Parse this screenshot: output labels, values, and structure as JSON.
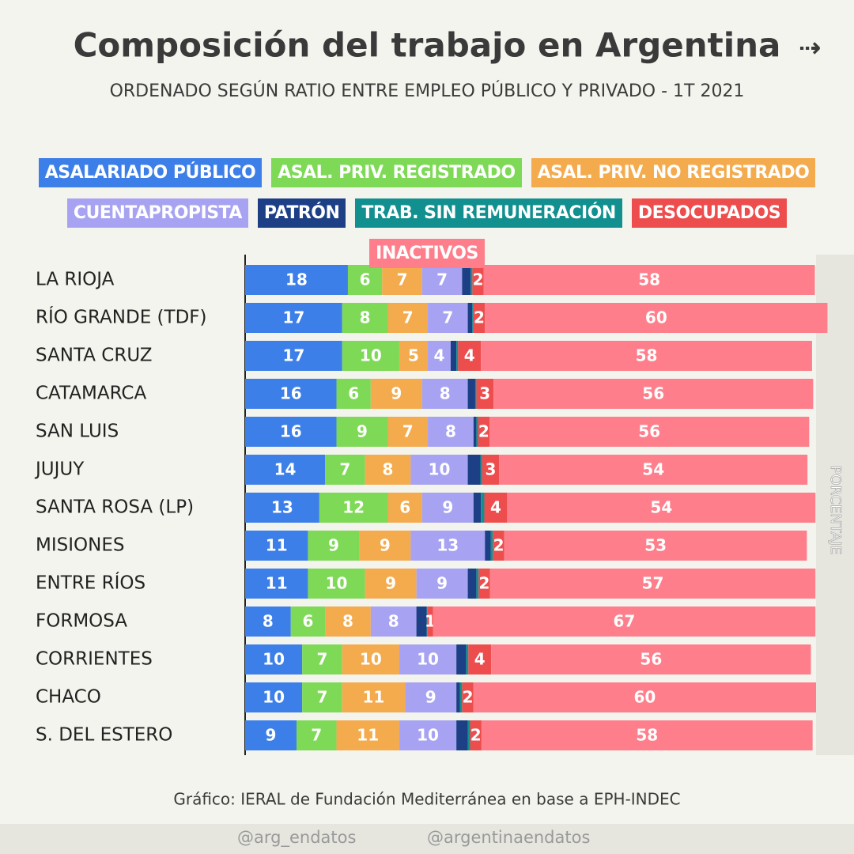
{
  "chart_data": {
    "type": "stacked-bar-horizontal",
    "title": "Composición del trabajo en Argentina",
    "subtitle": "ORDENADO SEGÚN RATIO ENTRE EMPLEO PÚBLICO Y PRIVADO  -  1T 2021",
    "x_label": "PORCENTAJE",
    "source": "Gráfico: IERAL de Fundación Mediterránea en base a EPH-INDEC",
    "credits": [
      "@arg_endatos",
      "@argentinaendatos"
    ],
    "categories": [
      "LA RIOJA",
      "RÍO GRANDE (TDF)",
      "SANTA CRUZ",
      "CATAMARCA",
      "SAN LUIS",
      "JUJUY",
      "SANTA ROSA (LP)",
      "MISIONES",
      "ENTRE RÍOS",
      "FORMOSA",
      "CORRIENTES",
      "CHACO",
      "S. DEL ESTERO"
    ],
    "xlim": [
      0,
      100
    ],
    "series": [
      {
        "name": "ASALARIADO PÚBLICO",
        "color": "#3d7fe8",
        "data_labels": true,
        "values": [
          18,
          17,
          17,
          16,
          16,
          14,
          13,
          11,
          11,
          8,
          10,
          10,
          9
        ]
      },
      {
        "name": "ASAL. PRIV. REGISTRADO",
        "color": "#7ed957",
        "data_labels": true,
        "values": [
          6,
          8,
          10,
          6,
          9,
          7,
          12,
          9,
          10,
          6,
          7,
          7,
          7
        ]
      },
      {
        "name": "ASAL. PRIV. NO REGISTRADO",
        "color": "#f4ab4e",
        "data_labels": true,
        "values": [
          7,
          7,
          5,
          9,
          7,
          8,
          6,
          9,
          9,
          8,
          10,
          11,
          11
        ]
      },
      {
        "name": "CUENTAPROPISTA",
        "color": "#a7a3f2",
        "data_labels": true,
        "values": [
          7,
          7,
          4,
          8,
          8,
          10,
          9,
          13,
          9,
          8,
          10,
          9,
          10
        ]
      },
      {
        "name": "PATRÓN",
        "color": "#1d3f86",
        "data_labels": false,
        "values": [
          1.5,
          0.8,
          1,
          1.3,
          0.5,
          2.2,
          1.3,
          1,
          1.5,
          1.8,
          1.7,
          0.6,
          2
        ]
      },
      {
        "name": "TRAB. SIN REMUNERACIÓN",
        "color": "#11908f",
        "data_labels": false,
        "values": [
          0.3,
          0.2,
          0.3,
          0.2,
          0.3,
          0.3,
          0.6,
          0.4,
          0.4,
          0.1,
          0.4,
          0.4,
          0.4
        ]
      },
      {
        "name": "DESOCUPADOS",
        "color": "#ee4d4d",
        "data_labels": true,
        "values": [
          2,
          2,
          4,
          3,
          2,
          3,
          4,
          2,
          2,
          1,
          4,
          2,
          2
        ]
      },
      {
        "name": "INACTIVOS",
        "color": "#fe7f8b",
        "data_labels": true,
        "values": [
          58,
          60,
          58,
          56,
          56,
          54,
          54,
          53,
          57,
          67,
          56,
          60,
          58
        ]
      }
    ]
  }
}
